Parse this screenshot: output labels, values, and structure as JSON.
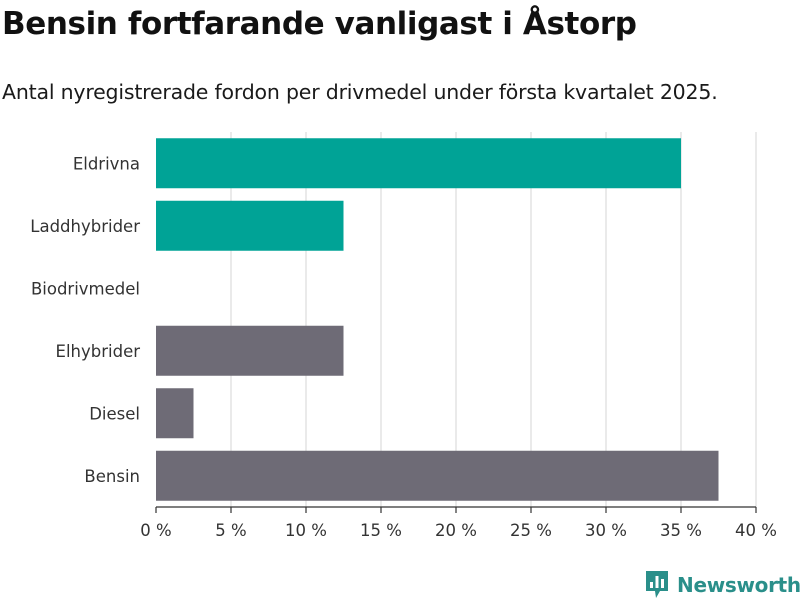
{
  "title": "Bensin fortfarande vanligast i Åstorp",
  "subtitle": "Antal nyregistrerade fordon per drivmedel under första kvartalet 2025.",
  "brand": {
    "name": "Newsworthy",
    "icon": "newsworthy-logo-icon",
    "color": "#2a8f8a"
  },
  "colors": {
    "electric": "#00a396",
    "fossil": "#6e6b76",
    "grid": "#dddddd",
    "axis": "#333333"
  },
  "chart_data": {
    "type": "bar",
    "orientation": "horizontal",
    "categories": [
      "Eldrivna",
      "Laddhybrider",
      "Biodrivmedel",
      "Elhybrider",
      "Diesel",
      "Bensin"
    ],
    "values": [
      35,
      12.5,
      0,
      12.5,
      2.5,
      37.5
    ],
    "bar_colors": [
      "#00a396",
      "#00a396",
      "#00a396",
      "#6e6b76",
      "#6e6b76",
      "#6e6b76"
    ],
    "xlim": [
      0,
      40
    ],
    "xticks": [
      0,
      5,
      10,
      15,
      20,
      25,
      30,
      35,
      40
    ],
    "tick_labels": [
      "0 %",
      "5 %",
      "10 %",
      "15 %",
      "20 %",
      "25 %",
      "30 %",
      "35 %",
      "40 %"
    ],
    "grid": true,
    "legend": "none"
  }
}
